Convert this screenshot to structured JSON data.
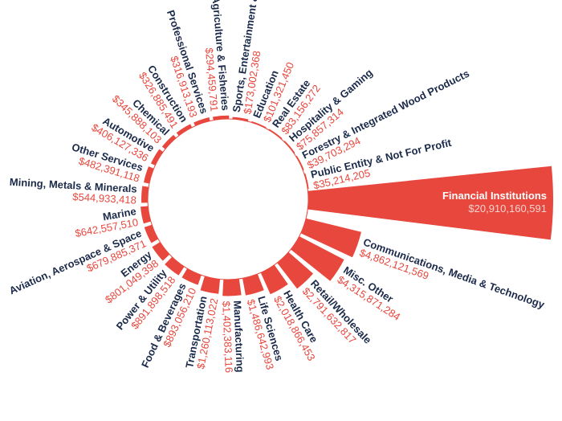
{
  "colors": {
    "bar": "#e8473d",
    "name_text": "#1b2a4a",
    "value_text": "#e8473d",
    "inside_name": "#ffffff",
    "inside_value": "#f6d4d1"
  },
  "chart_data": {
    "type": "bar",
    "layout": "radial",
    "title": "",
    "categories": [
      "Financial Institutions",
      "Public Entity & Not For Profit",
      "Forestry & Integrated Wood Products",
      "Hospitality & Gaming",
      "Real Estate",
      "Education",
      "Sports, Entertainment & Events",
      "Agriculture & Fisheries",
      "Professional Services",
      "Construction",
      "Chemical",
      "Automotive",
      "Other Services",
      "Mining, Metals & Minerals",
      "Marine",
      "Aviation, Aerospace & Space",
      "Energy",
      "Power & Utility",
      "Food & Beverages",
      "Transportation",
      "Manufacturing",
      "Life Sciences",
      "Health Care",
      "Retail/Wholesale",
      "Misc. Other",
      "Communications, Media & Technology"
    ],
    "values": [
      20910160591,
      35214205,
      39703294,
      75857314,
      83156272,
      101321450,
      173002368,
      294459791,
      316913193,
      326885491,
      345888103,
      406127336,
      482391118,
      544933418,
      642557510,
      679885371,
      801049398,
      891898518,
      893056210,
      1260113022,
      1402383116,
      1486642993,
      2018866453,
      2791632817,
      4315871284,
      4862121569
    ],
    "value_labels": [
      "$20,910,160,591",
      "$35,214,205",
      "$39,703,294",
      "$75,857,314",
      "$83,156,272",
      "$101,321,450",
      "$173,002,368",
      "$294,459,791",
      "$316,913,193",
      "$326,885,491",
      "$345,888,103",
      "$406,127,336",
      "$482,391,118",
      "$544,933,418",
      "$642,557,510",
      "$679,885,371",
      "$801,049,398",
      "$891,898,518",
      "$893,056,210",
      "$1,260,113,022",
      "$1,402,383,116",
      "$1,486,642,993",
      "$2,018,866,453",
      "$2,791,632,817",
      "$4,315,871,284",
      "$4,862,121,569"
    ]
  }
}
